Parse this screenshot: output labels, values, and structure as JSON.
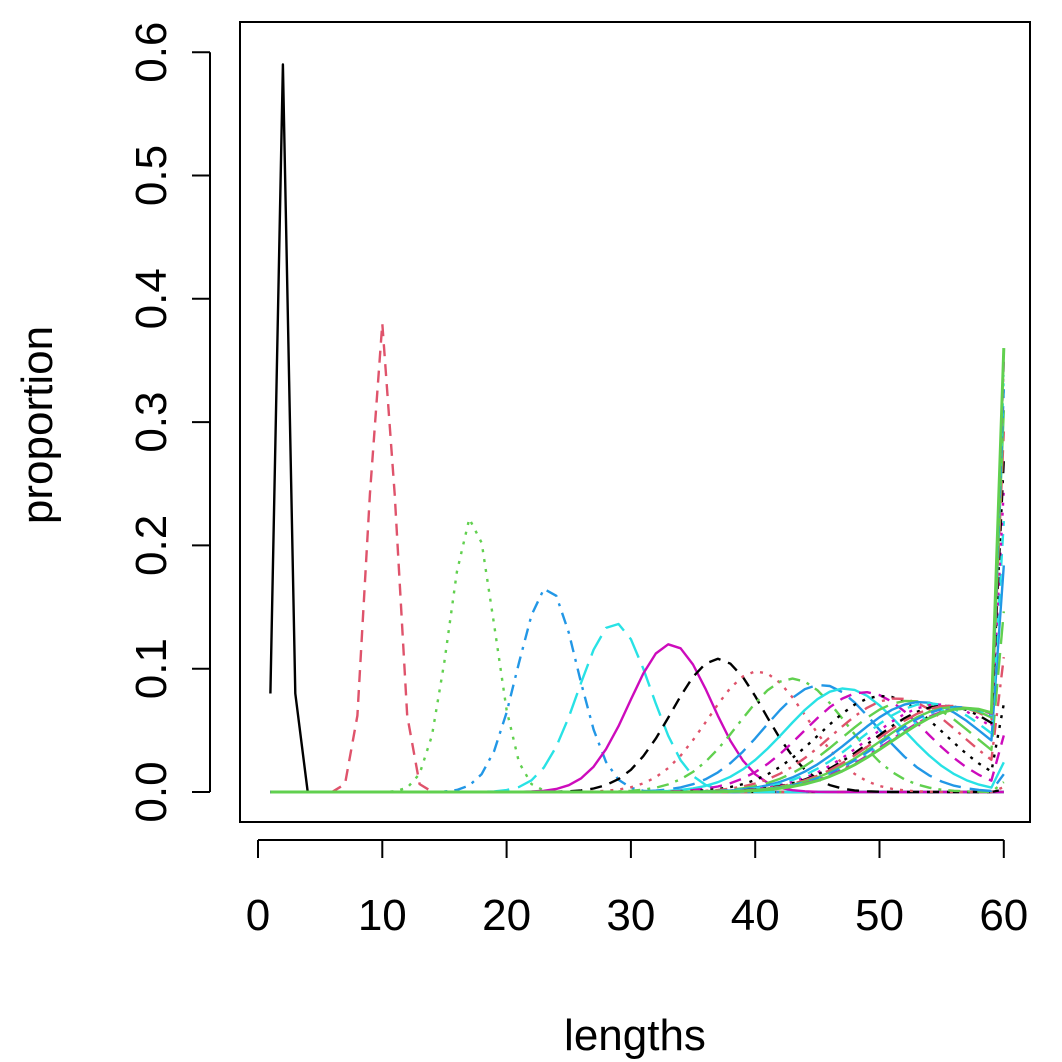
{
  "chart_data": {
    "type": "line",
    "xlabel": "lengths",
    "ylabel": "proportion",
    "xlim": [
      1,
      60
    ],
    "ylim": [
      0,
      0.6
    ],
    "xticks": [
      0,
      10,
      20,
      30,
      40,
      50,
      60
    ],
    "yticks": [
      0.0,
      0.1,
      0.2,
      0.3,
      0.4,
      0.5,
      0.6
    ],
    "xtick_labels": [
      "0",
      "10",
      "20",
      "30",
      "40",
      "50",
      "60"
    ],
    "ytick_labels": [
      "0.0",
      "0.1",
      "0.2",
      "0.3",
      "0.4",
      "0.5",
      "0.6"
    ],
    "grid": false,
    "legend": "none",
    "x_min": 1,
    "x_max": 60,
    "series": [
      {
        "mu": 2,
        "sigma": 0.5,
        "peak": 0.59,
        "plus": 0,
        "color": "#000000",
        "dash": "solid"
      },
      {
        "mu": 10,
        "sigma": 1.05,
        "peak": 0.38,
        "plus": 0,
        "color": "#DF536B",
        "dash": "dashed"
      },
      {
        "mu": 17.2,
        "sigma": 1.8,
        "peak": 0.223,
        "plus": 0,
        "color": "#61D04F",
        "dash": "dotted"
      },
      {
        "mu": 23.3,
        "sigma": 2.4,
        "peak": 0.166,
        "plus": 0,
        "color": "#2297E6",
        "dash": "dotdash"
      },
      {
        "mu": 28.7,
        "sigma": 2.9,
        "peak": 0.137,
        "plus": 0,
        "color": "#28E2E5",
        "dash": "longdash"
      },
      {
        "mu": 33.2,
        "sigma": 3.3,
        "peak": 0.12,
        "plus": 0,
        "color": "#CD0BBC",
        "dash": "solid"
      },
      {
        "mu": 37,
        "sigma": 3.7,
        "peak": 0.108,
        "plus": 0.002,
        "color": "#000000",
        "dash": "dashed"
      },
      {
        "mu": 40.2,
        "sigma": 4.0,
        "peak": 0.098,
        "plus": 0.004,
        "color": "#DF536B",
        "dash": "dotted"
      },
      {
        "mu": 43,
        "sigma": 4.3,
        "peak": 0.092,
        "plus": 0.008,
        "color": "#61D04F",
        "dash": "dotdash"
      },
      {
        "mu": 45.3,
        "sigma": 4.5,
        "peak": 0.087,
        "plus": 0.014,
        "color": "#2297E6",
        "dash": "longdash"
      },
      {
        "mu": 47.2,
        "sigma": 4.7,
        "peak": 0.084,
        "plus": 0.022,
        "color": "#28E2E5",
        "dash": "solid"
      },
      {
        "mu": 48.8,
        "sigma": 4.9,
        "peak": 0.081,
        "plus": 0.04,
        "color": "#CD0BBC",
        "dash": "dashed"
      },
      {
        "mu": 50.2,
        "sigma": 5.0,
        "peak": 0.078,
        "plus": 0.06,
        "color": "#000000",
        "dash": "dotted"
      },
      {
        "mu": 51.4,
        "sigma": 5.2,
        "peak": 0.076,
        "plus": 0.09,
        "color": "#DF536B",
        "dash": "dotdash"
      },
      {
        "mu": 52.4,
        "sigma": 5.3,
        "peak": 0.074,
        "plus": 0.12,
        "color": "#61D04F",
        "dash": "longdash"
      },
      {
        "mu": 53.3,
        "sigma": 5.4,
        "peak": 0.073,
        "plus": 0.15,
        "color": "#2297E6",
        "dash": "solid"
      },
      {
        "mu": 54,
        "sigma": 5.5,
        "peak": 0.072,
        "plus": 0.18,
        "color": "#28E2E5",
        "dash": "dashed"
      },
      {
        "mu": 54.7,
        "sigma": 5.6,
        "peak": 0.071,
        "plus": 0.2,
        "color": "#CD0BBC",
        "dash": "dotted"
      },
      {
        "mu": 55.2,
        "sigma": 5.7,
        "peak": 0.07,
        "plus": 0.22,
        "color": "#000000",
        "dash": "dotdash"
      },
      {
        "mu": 55.6,
        "sigma": 5.8,
        "peak": 0.07,
        "plus": 0.24,
        "color": "#DF536B",
        "dash": "longdash"
      },
      {
        "mu": 56,
        "sigma": 5.85,
        "peak": 0.069,
        "plus": 0.255,
        "color": "#61D04F",
        "dash": "solid"
      },
      {
        "mu": 56.3,
        "sigma": 5.9,
        "peak": 0.069,
        "plus": 0.27,
        "color": "#2297E6",
        "dash": "dashed"
      },
      {
        "mu": 56.6,
        "sigma": 5.95,
        "peak": 0.068,
        "plus": 0.28,
        "color": "#28E2E5",
        "dash": "dotted"
      },
      {
        "mu": 56.8,
        "sigma": 6.0,
        "peak": 0.068,
        "plus": 0.29,
        "color": "#CD0BBC",
        "dash": "dotdash"
      },
      {
        "mu": 57,
        "sigma": 6.0,
        "peak": 0.068,
        "plus": 0.3,
        "color": "#61D04F",
        "dash": "solid"
      }
    ]
  }
}
